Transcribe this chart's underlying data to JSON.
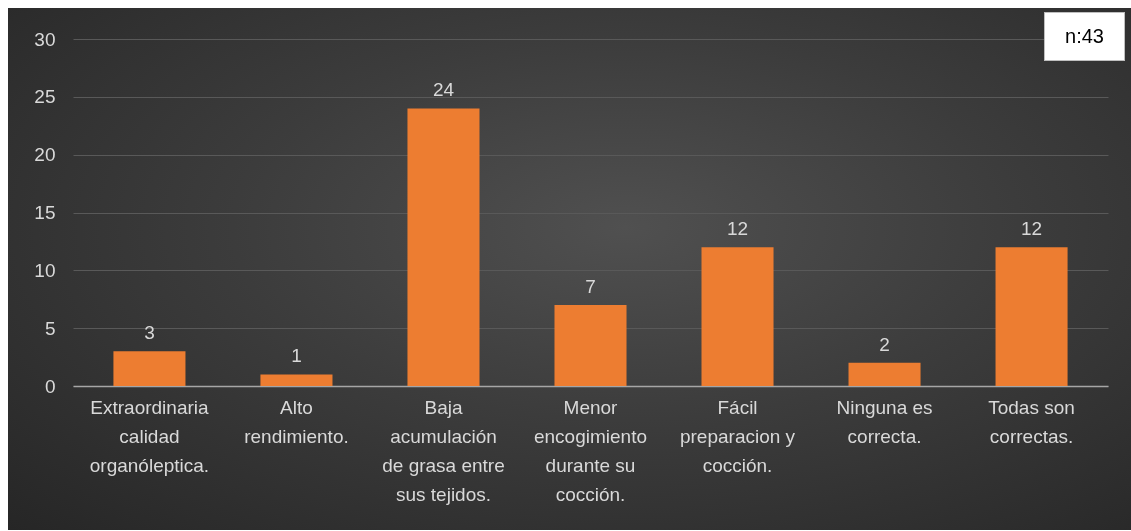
{
  "chart_data": {
    "type": "bar",
    "categories": [
      "Extraordinaria calidad organóleptica.",
      "Alto rendimiento.",
      "Baja acumulación de grasa entre sus tejidos.",
      "Menor encogimiento durante su cocción.",
      "Fácil preparacion y cocción.",
      "Ninguna es correcta.",
      "Todas son correctas."
    ],
    "values": [
      3,
      1,
      24,
      7,
      12,
      2,
      12
    ],
    "color": "#ed7d31",
    "ylim": [
      0,
      30
    ],
    "yticks": [
      0,
      5,
      10,
      15,
      20,
      25,
      30
    ],
    "grid": "y",
    "data_labels": true,
    "annotations": [
      "n:43"
    ]
  }
}
